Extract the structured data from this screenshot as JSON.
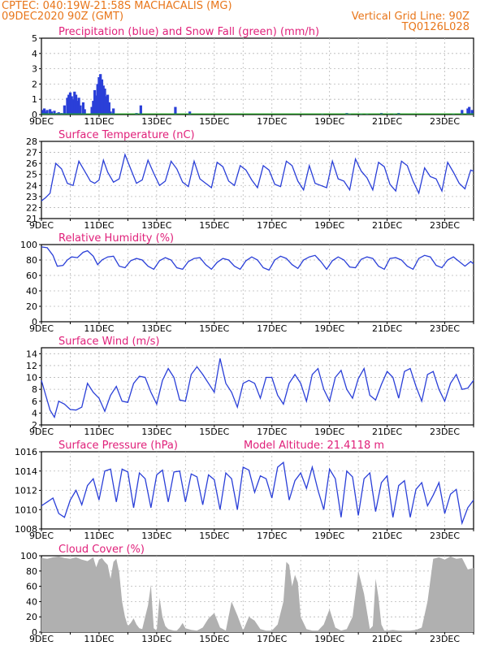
{
  "header": {
    "line1_left": "CPTEC:   040:19W-21:58S   MACHACALIS (MG)",
    "line2_left": "09DEC2020 90Z (GMT)",
    "line1_right": "Vertical Grid Line: 90Z",
    "line2_right": "TQ0126L028"
  },
  "colors": {
    "header": "#e8761a",
    "title": "#e0207a",
    "line": "#2a3fd8",
    "bar": "#2a3fd8",
    "snow": "#1aa81a",
    "cloud": "#b0b0b0",
    "grid": "#b8b8b8"
  },
  "x_labels": [
    "9DEC",
    "11DEC",
    "13DEC",
    "15DEC",
    "17DEC",
    "19DEC",
    "21DEC",
    "23DEC"
  ],
  "chart_data": [
    {
      "type": "bar",
      "title": "Precipitation (blue) and Snow Fall (green) (mm/h)",
      "ylim": [
        0,
        5
      ],
      "yticks": [
        0,
        1,
        2,
        3,
        4,
        5
      ],
      "x_unit": "days since 09DEC2020 09Z",
      "series": [
        {
          "name": "Precipitation",
          "x": [
            0.05,
            0.1,
            0.15,
            0.2,
            0.3,
            0.35,
            0.45,
            0.55,
            0.6,
            0.7,
            0.8,
            0.9,
            0.95,
            1.0,
            1.05,
            1.1,
            1.15,
            1.2,
            1.25,
            1.3,
            1.35,
            1.45,
            1.5,
            1.75,
            1.8,
            1.85,
            1.9,
            1.95,
            2.0,
            2.05,
            2.1,
            2.15,
            2.2,
            2.25,
            2.3,
            2.35,
            2.4,
            2.5,
            3.3,
            3.45,
            4.65,
            5.15,
            9.75,
            10.6,
            10.7,
            11.1,
            11.3,
            11.8,
            12.05,
            12.25,
            12.4,
            14.3,
            14.6,
            14.8,
            14.85,
            14.95
          ],
          "values": [
            0.3,
            0.4,
            0.2,
            0.3,
            0.35,
            0.2,
            0.25,
            0.1,
            0.15,
            0.1,
            0.6,
            1.1,
            1.3,
            1.45,
            1.2,
            1.0,
            1.5,
            1.3,
            0.9,
            1.1,
            0.6,
            0.8,
            0.35,
            0.5,
            0.9,
            1.6,
            1.25,
            2.0,
            2.45,
            2.65,
            2.3,
            1.9,
            1.7,
            1.2,
            1.3,
            0.8,
            0.2,
            0.4,
            0.1,
            0.6,
            0.5,
            0.2,
            0.05,
            0.1,
            0.05,
            0.05,
            0.05,
            0.1,
            0.05,
            0.05,
            0.1,
            0.05,
            0.3,
            0.4,
            0.5,
            0.3
          ]
        }
      ]
    },
    {
      "type": "line",
      "title": "Surface Temperature (nC)",
      "ylim": [
        21,
        28
      ],
      "yticks": [
        21,
        22,
        23,
        24,
        25,
        26,
        27,
        28
      ],
      "x_unit": "days since 09DEC2020 09Z",
      "series": [
        {
          "name": "Surface Temperature",
          "x": [
            0,
            0.15,
            0.3,
            0.5,
            0.7,
            0.9,
            1.1,
            1.3,
            1.5,
            1.7,
            1.85,
            2.0,
            2.15,
            2.3,
            2.5,
            2.7,
            2.9,
            3.1,
            3.3,
            3.5,
            3.7,
            3.9,
            4.1,
            4.3,
            4.5,
            4.7,
            4.9,
            5.1,
            5.3,
            5.5,
            5.7,
            5.9,
            6.1,
            6.3,
            6.5,
            6.7,
            6.9,
            7.1,
            7.3,
            7.5,
            7.7,
            7.9,
            8.1,
            8.3,
            8.5,
            8.7,
            8.9,
            9.1,
            9.3,
            9.5,
            9.7,
            9.9,
            10.1,
            10.3,
            10.5,
            10.7,
            10.9,
            11.1,
            11.3,
            11.5,
            11.7,
            11.9,
            12.1,
            12.3,
            12.5,
            12.7,
            12.9,
            13.1,
            13.3,
            13.5,
            13.7,
            13.9,
            14.1,
            14.3,
            14.5,
            14.7,
            14.9,
            15.0
          ],
          "values": [
            22.6,
            22.9,
            23.3,
            26.0,
            25.5,
            24.2,
            24.0,
            26.2,
            25.3,
            24.4,
            24.2,
            24.5,
            26.3,
            25.2,
            24.3,
            24.6,
            26.8,
            25.5,
            24.2,
            24.5,
            26.3,
            25.1,
            24.0,
            24.4,
            26.2,
            25.5,
            24.3,
            23.9,
            26.2,
            24.6,
            24.2,
            23.8,
            26.1,
            25.7,
            24.4,
            24.0,
            25.8,
            25.4,
            24.5,
            23.8,
            25.8,
            25.4,
            24.1,
            23.9,
            26.2,
            25.8,
            24.4,
            23.6,
            25.8,
            24.2,
            24.0,
            23.8,
            26.2,
            24.6,
            24.4,
            23.6,
            26.4,
            25.3,
            24.7,
            23.6,
            26.1,
            25.7,
            24.1,
            23.5,
            26.2,
            25.8,
            24.4,
            23.3,
            25.6,
            24.8,
            24.6,
            23.5,
            26.1,
            25.2,
            24.2,
            23.7,
            25.4,
            25.3
          ]
        }
      ]
    },
    {
      "type": "line",
      "title": "Relative Humidity (%)",
      "ylim": [
        0,
        100
      ],
      "yticks": [
        0,
        20,
        40,
        60,
        80,
        100
      ],
      "x_unit": "days since 09DEC2020 09Z",
      "series": [
        {
          "name": "Relative Humidity",
          "x": [
            0,
            0.2,
            0.4,
            0.55,
            0.75,
            0.9,
            1.05,
            1.25,
            1.45,
            1.6,
            1.8,
            1.95,
            2.1,
            2.3,
            2.5,
            2.7,
            2.9,
            3.1,
            3.3,
            3.5,
            3.7,
            3.9,
            4.1,
            4.3,
            4.5,
            4.7,
            4.9,
            5.1,
            5.3,
            5.5,
            5.7,
            5.9,
            6.1,
            6.3,
            6.5,
            6.7,
            6.9,
            7.1,
            7.3,
            7.5,
            7.7,
            7.9,
            8.1,
            8.3,
            8.5,
            8.7,
            8.9,
            9.1,
            9.3,
            9.5,
            9.7,
            9.9,
            10.1,
            10.3,
            10.5,
            10.7,
            10.9,
            11.1,
            11.3,
            11.5,
            11.7,
            11.9,
            12.1,
            12.3,
            12.5,
            12.7,
            12.9,
            13.1,
            13.3,
            13.5,
            13.7,
            13.9,
            14.1,
            14.3,
            14.5,
            14.7,
            14.9,
            15.0
          ],
          "values": [
            97,
            96,
            86,
            72,
            73,
            80,
            84,
            83,
            90,
            92,
            85,
            74,
            80,
            84,
            85,
            72,
            70,
            79,
            82,
            80,
            72,
            68,
            79,
            83,
            80,
            70,
            68,
            78,
            82,
            83,
            74,
            68,
            77,
            82,
            80,
            72,
            68,
            79,
            84,
            80,
            70,
            67,
            80,
            85,
            82,
            74,
            69,
            80,
            84,
            86,
            78,
            68,
            79,
            84,
            80,
            71,
            70,
            81,
            84,
            82,
            72,
            68,
            82,
            83,
            80,
            72,
            68,
            82,
            86,
            84,
            73,
            70,
            80,
            84,
            78,
            72,
            78,
            75
          ]
        }
      ]
    },
    {
      "type": "line",
      "title": "Surface Wind (m/s)",
      "ylim": [
        2,
        15
      ],
      "yticks": [
        2,
        4,
        6,
        8,
        10,
        12,
        14
      ],
      "x_unit": "days since 09DEC2020 09Z",
      "series": [
        {
          "name": "Surface Wind",
          "x": [
            0,
            0.15,
            0.3,
            0.45,
            0.6,
            0.8,
            1.0,
            1.2,
            1.4,
            1.6,
            1.8,
            2.0,
            2.2,
            2.4,
            2.6,
            2.8,
            3.0,
            3.2,
            3.4,
            3.6,
            3.8,
            4.0,
            4.2,
            4.4,
            4.6,
            4.8,
            5.0,
            5.2,
            5.4,
            5.6,
            5.8,
            6.0,
            6.2,
            6.4,
            6.6,
            6.8,
            7.0,
            7.2,
            7.4,
            7.6,
            7.8,
            8.0,
            8.2,
            8.4,
            8.6,
            8.8,
            9.0,
            9.2,
            9.4,
            9.6,
            9.8,
            10.0,
            10.2,
            10.4,
            10.6,
            10.8,
            11.0,
            11.2,
            11.4,
            11.6,
            11.8,
            12.0,
            12.2,
            12.4,
            12.6,
            12.8,
            13.0,
            13.2,
            13.4,
            13.6,
            13.8,
            14.0,
            14.2,
            14.4,
            14.6,
            14.8,
            15.0
          ],
          "values": [
            9.5,
            7.0,
            4.5,
            3.3,
            6.0,
            5.5,
            4.6,
            4.5,
            5.0,
            9.0,
            7.5,
            6.5,
            4.3,
            7.0,
            8.5,
            6.0,
            5.8,
            9.0,
            10.2,
            10.0,
            7.5,
            5.5,
            9.5,
            11.5,
            10.0,
            6.2,
            6.0,
            10.5,
            11.8,
            10.5,
            9.0,
            7.5,
            13.2,
            9.0,
            7.5,
            5.0,
            9.0,
            9.5,
            9.0,
            6.5,
            10.0,
            10.0,
            7.0,
            5.5,
            9.0,
            10.5,
            9.0,
            6.0,
            10.5,
            11.5,
            8.0,
            6.0,
            10.0,
            11.2,
            8.0,
            6.5,
            9.8,
            11.5,
            7.0,
            6.2,
            8.8,
            11.0,
            10.0,
            6.5,
            11.0,
            11.5,
            8.5,
            6.0,
            10.5,
            11.0,
            8.0,
            6.0,
            9.0,
            10.5,
            8.0,
            8.2,
            9.5
          ]
        }
      ]
    },
    {
      "type": "line",
      "title": "Surface Pressure (hPa)",
      "annotation": "Model Altitude: 21.4118 m",
      "ylim": [
        1008,
        1016
      ],
      "yticks": [
        1008,
        1010,
        1012,
        1014,
        1016
      ],
      "x_unit": "days since 09DEC2020 09Z",
      "series": [
        {
          "name": "Surface Pressure",
          "x": [
            0,
            0.2,
            0.4,
            0.6,
            0.8,
            1.0,
            1.2,
            1.4,
            1.6,
            1.8,
            2.0,
            2.2,
            2.4,
            2.6,
            2.8,
            3.0,
            3.2,
            3.4,
            3.6,
            3.8,
            4.0,
            4.2,
            4.4,
            4.6,
            4.8,
            5.0,
            5.2,
            5.4,
            5.6,
            5.8,
            6.0,
            6.2,
            6.4,
            6.6,
            6.8,
            7.0,
            7.2,
            7.4,
            7.6,
            7.8,
            8.0,
            8.2,
            8.4,
            8.6,
            8.8,
            9.0,
            9.2,
            9.4,
            9.6,
            9.8,
            10.0,
            10.2,
            10.4,
            10.6,
            10.8,
            11.0,
            11.2,
            11.4,
            11.6,
            11.8,
            12.0,
            12.2,
            12.4,
            12.6,
            12.8,
            13.0,
            13.2,
            13.4,
            13.6,
            13.8,
            14.0,
            14.2,
            14.4,
            14.6,
            14.8,
            15.0
          ],
          "values": [
            1010.4,
            1010.8,
            1011.2,
            1009.6,
            1009.2,
            1011.0,
            1012.0,
            1010.5,
            1012.5,
            1013.2,
            1011.0,
            1014.0,
            1014.2,
            1010.8,
            1014.2,
            1013.9,
            1010.2,
            1013.8,
            1013.2,
            1010.2,
            1013.6,
            1014.1,
            1010.8,
            1013.9,
            1014.0,
            1010.8,
            1013.7,
            1013.4,
            1010.5,
            1013.6,
            1013.1,
            1010.0,
            1013.8,
            1013.2,
            1010.0,
            1014.4,
            1014.1,
            1011.8,
            1013.5,
            1013.2,
            1011.2,
            1014.4,
            1014.9,
            1011.0,
            1013.0,
            1013.8,
            1012.2,
            1014.4,
            1012.0,
            1010.0,
            1014.2,
            1013.2,
            1009.2,
            1014.0,
            1013.4,
            1009.4,
            1013.2,
            1013.8,
            1009.8,
            1012.8,
            1013.5,
            1009.2,
            1012.5,
            1013.0,
            1009.2,
            1012.1,
            1012.8,
            1010.4,
            1011.5,
            1012.8,
            1009.6,
            1011.6,
            1012.1,
            1008.6,
            1010.2,
            1011.0
          ]
        }
      ]
    },
    {
      "type": "area",
      "title": "Cloud Cover (%)",
      "ylim": [
        0,
        100
      ],
      "yticks": [
        0,
        20,
        40,
        60,
        80,
        100
      ],
      "x_unit": "days since 09DEC2020 09Z",
      "series": [
        {
          "name": "Cloud Cover",
          "x": [
            0,
            0.2,
            0.4,
            0.6,
            0.8,
            1.0,
            1.2,
            1.4,
            1.6,
            1.8,
            1.9,
            2.0,
            2.1,
            2.2,
            2.3,
            2.4,
            2.5,
            2.6,
            2.7,
            2.8,
            2.9,
            3.0,
            3.1,
            3.2,
            3.3,
            3.4,
            3.5,
            3.6,
            3.7,
            3.8,
            3.9,
            4.0,
            4.1,
            4.2,
            4.3,
            4.4,
            4.5,
            4.6,
            4.7,
            4.8,
            4.9,
            5.0,
            5.2,
            5.4,
            5.6,
            5.8,
            6.0,
            6.2,
            6.4,
            6.6,
            6.8,
            7.0,
            7.2,
            7.4,
            7.6,
            7.8,
            8.0,
            8.2,
            8.4,
            8.5,
            8.6,
            8.7,
            8.8,
            8.9,
            9.0,
            9.2,
            9.4,
            9.6,
            9.8,
            10.0,
            10.2,
            10.4,
            10.6,
            10.8,
            11.0,
            11.2,
            11.4,
            11.5,
            11.6,
            11.7,
            11.8,
            11.9,
            12.0,
            12.2,
            12.4,
            12.6,
            12.8,
            13.0,
            13.2,
            13.4,
            13.6,
            13.8,
            14.0,
            14.2,
            14.4,
            14.6,
            14.8,
            15.0
          ],
          "values": [
            97,
            96,
            98,
            99,
            97,
            96,
            98,
            95,
            93,
            98,
            85,
            95,
            97,
            92,
            88,
            70,
            92,
            96,
            78,
            40,
            20,
            8,
            12,
            18,
            10,
            5,
            4,
            20,
            35,
            62,
            5,
            2,
            45,
            20,
            8,
            4,
            3,
            2,
            2,
            6,
            12,
            5,
            3,
            2,
            6,
            18,
            25,
            6,
            2,
            40,
            22,
            2,
            20,
            15,
            4,
            2,
            2,
            10,
            40,
            92,
            88,
            60,
            75,
            65,
            20,
            4,
            2,
            2,
            10,
            30,
            6,
            2,
            4,
            20,
            80,
            50,
            4,
            8,
            70,
            45,
            10,
            2,
            2,
            3,
            2,
            2,
            2,
            3,
            6,
            40,
            96,
            98,
            95,
            99,
            96,
            97,
            82,
            84
          ]
        }
      ]
    }
  ]
}
